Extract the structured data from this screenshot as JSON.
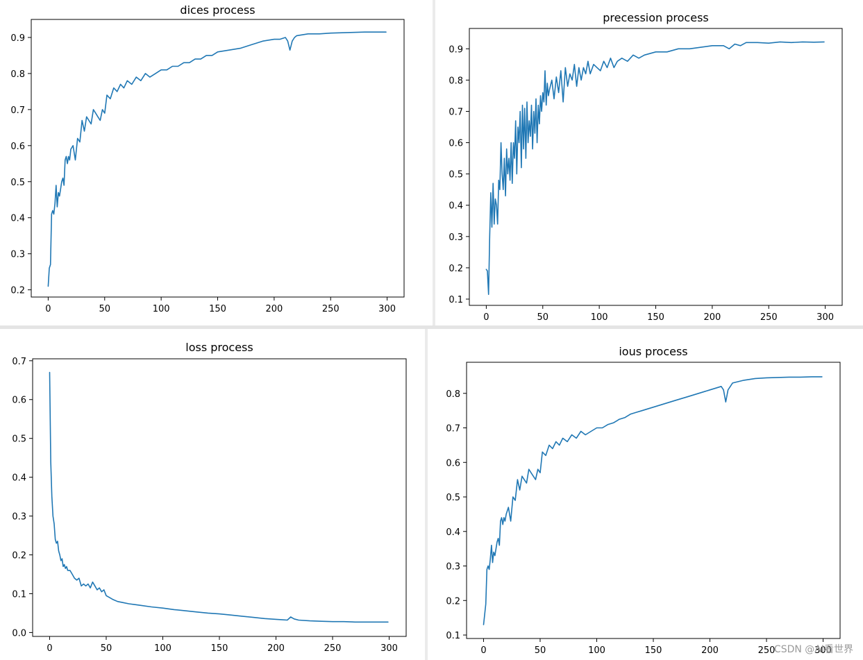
{
  "colors": {
    "line": "#1f77b4",
    "axes": "#000000",
    "background": "#ffffff"
  },
  "watermark": "CSDN @AI看世界",
  "chart_data": [
    {
      "id": "dices",
      "type": "line",
      "title": "dices process",
      "xlabel": "",
      "ylabel": "",
      "xlim": [
        -15,
        315
      ],
      "ylim": [
        0.18,
        0.95
      ],
      "xticks": [
        0,
        50,
        100,
        150,
        200,
        250,
        300
      ],
      "yticks": [
        0.2,
        0.3,
        0.4,
        0.5,
        0.6,
        0.7,
        0.8,
        0.9
      ],
      "ytick_labels": [
        "0.2",
        "0.3",
        "0.4",
        "0.5",
        "0.6",
        "0.7",
        "0.8",
        "0.9"
      ],
      "grid": false,
      "series": [
        {
          "name": "dices",
          "x": [
            0,
            1,
            2,
            3,
            4,
            5,
            6,
            7,
            8,
            9,
            10,
            11,
            12,
            13,
            14,
            15,
            16,
            17,
            18,
            19,
            20,
            22,
            24,
            26,
            28,
            30,
            32,
            34,
            36,
            38,
            40,
            42,
            44,
            46,
            48,
            50,
            52,
            55,
            58,
            61,
            64,
            67,
            70,
            74,
            78,
            82,
            86,
            90,
            95,
            100,
            105,
            110,
            115,
            120,
            125,
            130,
            135,
            140,
            145,
            150,
            160,
            170,
            180,
            190,
            200,
            205,
            210,
            212,
            214,
            216,
            218,
            220,
            230,
            240,
            250,
            260,
            270,
            280,
            290,
            299
          ],
          "y": [
            0.21,
            0.26,
            0.27,
            0.41,
            0.42,
            0.41,
            0.44,
            0.49,
            0.43,
            0.47,
            0.46,
            0.48,
            0.5,
            0.51,
            0.49,
            0.56,
            0.57,
            0.55,
            0.57,
            0.56,
            0.59,
            0.6,
            0.56,
            0.62,
            0.61,
            0.67,
            0.64,
            0.68,
            0.67,
            0.66,
            0.7,
            0.69,
            0.68,
            0.67,
            0.7,
            0.69,
            0.74,
            0.73,
            0.76,
            0.75,
            0.77,
            0.76,
            0.78,
            0.77,
            0.79,
            0.78,
            0.8,
            0.79,
            0.8,
            0.81,
            0.81,
            0.82,
            0.82,
            0.83,
            0.83,
            0.84,
            0.84,
            0.85,
            0.85,
            0.86,
            0.865,
            0.87,
            0.88,
            0.89,
            0.895,
            0.895,
            0.9,
            0.89,
            0.865,
            0.89,
            0.9,
            0.905,
            0.91,
            0.91,
            0.912,
            0.913,
            0.914,
            0.915,
            0.915,
            0.915
          ]
        }
      ]
    },
    {
      "id": "precession",
      "type": "line",
      "title": "precession process",
      "xlabel": "",
      "ylabel": "",
      "xlim": [
        -15,
        315
      ],
      "ylim": [
        0.08,
        0.965
      ],
      "xticks": [
        0,
        50,
        100,
        150,
        200,
        250,
        300
      ],
      "yticks": [
        0.1,
        0.2,
        0.3,
        0.4,
        0.5,
        0.6,
        0.7,
        0.8,
        0.9
      ],
      "ytick_labels": [
        "0.1",
        "0.2",
        "0.3",
        "0.4",
        "0.5",
        "0.6",
        "0.7",
        "0.8",
        "0.9"
      ],
      "grid": false,
      "series": [
        {
          "name": "precession",
          "x": [
            0,
            1,
            2,
            3,
            4,
            5,
            6,
            7,
            8,
            9,
            10,
            11,
            12,
            13,
            14,
            15,
            16,
            17,
            18,
            19,
            20,
            21,
            22,
            23,
            24,
            25,
            26,
            27,
            28,
            29,
            30,
            31,
            32,
            33,
            34,
            35,
            36,
            37,
            38,
            39,
            40,
            41,
            42,
            43,
            44,
            45,
            46,
            47,
            48,
            49,
            50,
            51,
            52,
            53,
            54,
            55,
            56,
            58,
            60,
            62,
            64,
            66,
            68,
            70,
            72,
            74,
            76,
            78,
            80,
            82,
            84,
            86,
            88,
            90,
            92,
            95,
            98,
            101,
            104,
            107,
            110,
            113,
            116,
            120,
            125,
            130,
            135,
            140,
            150,
            160,
            170,
            180,
            190,
            200,
            210,
            215,
            220,
            225,
            230,
            240,
            250,
            260,
            270,
            280,
            290,
            299
          ],
          "y": [
            0.195,
            0.19,
            0.115,
            0.3,
            0.44,
            0.33,
            0.47,
            0.34,
            0.42,
            0.4,
            0.34,
            0.48,
            0.45,
            0.6,
            0.5,
            0.45,
            0.55,
            0.43,
            0.58,
            0.5,
            0.55,
            0.48,
            0.6,
            0.47,
            0.6,
            0.55,
            0.67,
            0.5,
            0.65,
            0.6,
            0.7,
            0.52,
            0.72,
            0.58,
            0.71,
            0.55,
            0.73,
            0.6,
            0.67,
            0.62,
            0.72,
            0.58,
            0.7,
            0.63,
            0.74,
            0.6,
            0.72,
            0.66,
            0.75,
            0.7,
            0.76,
            0.73,
            0.83,
            0.72,
            0.79,
            0.75,
            0.77,
            0.8,
            0.74,
            0.81,
            0.76,
            0.83,
            0.73,
            0.84,
            0.78,
            0.82,
            0.8,
            0.85,
            0.78,
            0.84,
            0.8,
            0.84,
            0.82,
            0.86,
            0.82,
            0.85,
            0.84,
            0.83,
            0.86,
            0.84,
            0.87,
            0.84,
            0.86,
            0.87,
            0.86,
            0.88,
            0.87,
            0.88,
            0.89,
            0.89,
            0.9,
            0.9,
            0.905,
            0.91,
            0.91,
            0.9,
            0.915,
            0.91,
            0.92,
            0.92,
            0.918,
            0.922,
            0.92,
            0.922,
            0.921,
            0.922
          ]
        }
      ]
    },
    {
      "id": "loss",
      "type": "line",
      "title": "loss process",
      "xlabel": "",
      "ylabel": "",
      "xlim": [
        -15,
        315
      ],
      "ylim": [
        -0.01,
        0.705
      ],
      "xticks": [
        0,
        50,
        100,
        150,
        200,
        250,
        300
      ],
      "yticks": [
        0.0,
        0.1,
        0.2,
        0.3,
        0.4,
        0.5,
        0.6,
        0.7
      ],
      "ytick_labels": [
        "0.0",
        "0.1",
        "0.2",
        "0.3",
        "0.4",
        "0.5",
        "0.6",
        "0.7"
      ],
      "grid": false,
      "series": [
        {
          "name": "loss",
          "x": [
            0,
            1,
            2,
            3,
            4,
            5,
            6,
            7,
            8,
            9,
            10,
            11,
            12,
            13,
            14,
            15,
            16,
            18,
            20,
            22,
            24,
            26,
            28,
            30,
            32,
            34,
            36,
            38,
            40,
            42,
            44,
            46,
            48,
            50,
            53,
            56,
            60,
            65,
            70,
            75,
            80,
            90,
            100,
            110,
            120,
            130,
            140,
            150,
            160,
            170,
            180,
            190,
            200,
            205,
            210,
            213,
            216,
            220,
            230,
            240,
            250,
            260,
            270,
            280,
            290,
            299
          ],
          "y": [
            0.67,
            0.44,
            0.35,
            0.3,
            0.28,
            0.24,
            0.23,
            0.235,
            0.21,
            0.2,
            0.185,
            0.19,
            0.17,
            0.175,
            0.165,
            0.17,
            0.16,
            0.16,
            0.15,
            0.14,
            0.135,
            0.14,
            0.12,
            0.125,
            0.12,
            0.125,
            0.115,
            0.13,
            0.12,
            0.11,
            0.115,
            0.105,
            0.11,
            0.095,
            0.09,
            0.085,
            0.08,
            0.077,
            0.074,
            0.072,
            0.07,
            0.066,
            0.063,
            0.059,
            0.056,
            0.053,
            0.05,
            0.048,
            0.045,
            0.042,
            0.039,
            0.036,
            0.034,
            0.033,
            0.032,
            0.04,
            0.035,
            0.032,
            0.03,
            0.029,
            0.028,
            0.028,
            0.027,
            0.027,
            0.027,
            0.027
          ]
        }
      ]
    },
    {
      "id": "ious",
      "type": "line",
      "title": "ious process",
      "xlabel": "",
      "ylabel": "",
      "xlim": [
        -15,
        315
      ],
      "ylim": [
        0.09,
        0.89
      ],
      "xticks": [
        0,
        50,
        100,
        150,
        200,
        250,
        300
      ],
      "yticks": [
        0.1,
        0.2,
        0.3,
        0.4,
        0.5,
        0.6,
        0.7,
        0.8
      ],
      "ytick_labels": [
        "0.1",
        "0.2",
        "0.3",
        "0.4",
        "0.5",
        "0.6",
        "0.7",
        "0.8"
      ],
      "grid": false,
      "series": [
        {
          "name": "ious",
          "x": [
            0,
            1,
            2,
            3,
            4,
            5,
            6,
            7,
            8,
            9,
            10,
            11,
            12,
            13,
            14,
            15,
            16,
            17,
            18,
            19,
            20,
            22,
            24,
            26,
            28,
            30,
            32,
            34,
            36,
            38,
            40,
            42,
            44,
            46,
            48,
            50,
            52,
            55,
            58,
            61,
            64,
            67,
            70,
            74,
            78,
            82,
            86,
            90,
            95,
            100,
            105,
            110,
            115,
            120,
            125,
            130,
            135,
            140,
            145,
            150,
            160,
            170,
            180,
            190,
            200,
            205,
            210,
            212,
            214,
            216,
            218,
            220,
            230,
            240,
            250,
            260,
            270,
            280,
            290,
            299
          ],
          "y": [
            0.13,
            0.16,
            0.19,
            0.29,
            0.3,
            0.29,
            0.32,
            0.36,
            0.31,
            0.34,
            0.33,
            0.35,
            0.37,
            0.38,
            0.36,
            0.43,
            0.44,
            0.42,
            0.44,
            0.43,
            0.45,
            0.47,
            0.43,
            0.5,
            0.49,
            0.55,
            0.52,
            0.56,
            0.55,
            0.54,
            0.58,
            0.57,
            0.56,
            0.55,
            0.58,
            0.57,
            0.63,
            0.62,
            0.65,
            0.64,
            0.66,
            0.65,
            0.67,
            0.66,
            0.68,
            0.67,
            0.69,
            0.68,
            0.69,
            0.7,
            0.7,
            0.71,
            0.715,
            0.725,
            0.73,
            0.74,
            0.745,
            0.75,
            0.755,
            0.76,
            0.77,
            0.78,
            0.79,
            0.8,
            0.81,
            0.815,
            0.82,
            0.81,
            0.775,
            0.81,
            0.82,
            0.83,
            0.838,
            0.843,
            0.845,
            0.846,
            0.847,
            0.847,
            0.848,
            0.848
          ]
        }
      ]
    }
  ]
}
